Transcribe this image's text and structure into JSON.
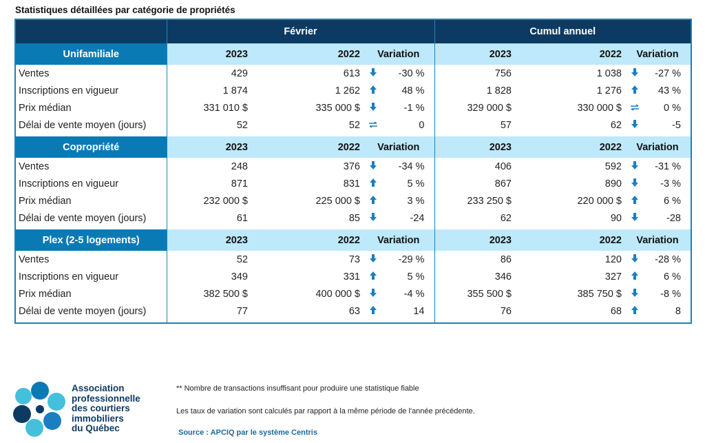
{
  "title": "Statistiques détaillées par catégorie de propriétés",
  "periods": [
    "Février",
    "Cumul annuel"
  ],
  "col_headers": {
    "y1": "2023",
    "y2": "2022",
    "var": "Variation"
  },
  "arrow_colors": "#1a7fc1",
  "sections": [
    {
      "name": "Unifamiliale",
      "rows": [
        {
          "label": "Ventes",
          "f23": "429",
          "f22": "613",
          "fdir": "down",
          "fvar": "-30 %",
          "c23": "756",
          "c22": "1 038",
          "cdir": "down",
          "cvar": "-27 %"
        },
        {
          "label": "Inscriptions en vigueur",
          "f23": "1 874",
          "f22": "1 262",
          "fdir": "up",
          "fvar": "48 %",
          "c23": "1 828",
          "c22": "1 276",
          "cdir": "up",
          "cvar": "43 %"
        },
        {
          "label": "Prix médian",
          "f23": "331 010 $",
          "f22": "335 000 $",
          "fdir": "down",
          "fvar": "-1 %",
          "c23": "329 000 $",
          "c22": "330 000 $",
          "cdir": "flat",
          "cvar": "0 %"
        },
        {
          "label": "Délai de vente moyen (jours)",
          "f23": "52",
          "f22": "52",
          "fdir": "flat",
          "fvar": "0",
          "c23": "57",
          "c22": "62",
          "cdir": "down",
          "cvar": "-5"
        }
      ]
    },
    {
      "name": "Copropriété",
      "rows": [
        {
          "label": "Ventes",
          "f23": "248",
          "f22": "376",
          "fdir": "down",
          "fvar": "-34 %",
          "c23": "406",
          "c22": "592",
          "cdir": "down",
          "cvar": "-31 %"
        },
        {
          "label": "Inscriptions en vigueur",
          "f23": "871",
          "f22": "831",
          "fdir": "up",
          "fvar": "5 %",
          "c23": "867",
          "c22": "890",
          "cdir": "down",
          "cvar": "-3 %"
        },
        {
          "label": "Prix médian",
          "f23": "232 000 $",
          "f22": "225 000 $",
          "fdir": "up",
          "fvar": "3 %",
          "c23": "233 250 $",
          "c22": "220 000 $",
          "cdir": "up",
          "cvar": "6 %"
        },
        {
          "label": "Délai de vente moyen (jours)",
          "f23": "61",
          "f22": "85",
          "fdir": "down",
          "fvar": "-24",
          "c23": "62",
          "c22": "90",
          "cdir": "down",
          "cvar": "-28"
        }
      ]
    },
    {
      "name": "Plex (2-5 logements)",
      "rows": [
        {
          "label": "Ventes",
          "f23": "52",
          "f22": "73",
          "fdir": "down",
          "fvar": "-29 %",
          "c23": "86",
          "c22": "120",
          "cdir": "down",
          "cvar": "-28 %"
        },
        {
          "label": "Inscriptions en vigueur",
          "f23": "349",
          "f22": "331",
          "fdir": "up",
          "fvar": "5 %",
          "c23": "346",
          "c22": "327",
          "cdir": "up",
          "cvar": "6 %"
        },
        {
          "label": "Prix médian",
          "f23": "382 500 $",
          "f22": "400 000 $",
          "fdir": "down",
          "fvar": "-4 %",
          "c23": "355 500 $",
          "c22": "385 750 $",
          "cdir": "down",
          "cvar": "-8 %"
        },
        {
          "label": "Délai de vente moyen (jours)",
          "f23": "77",
          "f22": "63",
          "fdir": "up",
          "fvar": "14",
          "c23": "76",
          "c22": "68",
          "cdir": "up",
          "cvar": "8"
        }
      ]
    }
  ],
  "footer": {
    "org": "Association professionnelle des courtiers immobiliers du Québec",
    "org_lines": [
      "Association",
      "professionnelle",
      "des courtiers",
      "immobiliers",
      "du Québec"
    ],
    "note1": "** Nombre de transactions insuffisant pour produire une statistique fiable",
    "note2": "Les taux de variation sont calculés par rapport à la même période de l'année précédente.",
    "source": "Source : APCIQ par le système Centris"
  }
}
